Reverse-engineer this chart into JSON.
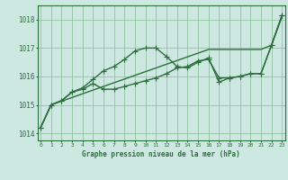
{
  "xlabel": "Graphe pression niveau de la mer (hPa)",
  "ylim": [
    1013.75,
    1018.5
  ],
  "xlim": [
    -0.3,
    23.3
  ],
  "yticks": [
    1014,
    1015,
    1016,
    1017,
    1018
  ],
  "xticks": [
    0,
    1,
    2,
    3,
    4,
    5,
    6,
    7,
    8,
    9,
    10,
    11,
    12,
    13,
    14,
    15,
    16,
    17,
    18,
    19,
    20,
    21,
    22,
    23
  ],
  "bg_color": "#cce8e0",
  "grid_color": "#88bb99",
  "line_color": "#2d6e3e",
  "series_straight": [
    1014.2,
    1015.0,
    1015.13,
    1015.26,
    1015.39,
    1015.52,
    1015.65,
    1015.78,
    1015.91,
    1016.04,
    1016.17,
    1016.3,
    1016.43,
    1016.56,
    1016.69,
    1016.82,
    1016.95,
    1016.95,
    1016.95,
    1016.95,
    1016.95,
    1016.95,
    1017.1,
    1018.1
  ],
  "series_high": [
    1014.2,
    1015.0,
    1015.15,
    1015.45,
    1015.6,
    1015.9,
    1016.2,
    1016.35,
    1016.6,
    1016.9,
    1017.0,
    1017.0,
    1016.7,
    1016.35,
    1016.3,
    1016.5,
    1016.65,
    1015.8,
    1015.95,
    1016.0,
    1016.1,
    1016.1,
    1017.1,
    1018.15
  ],
  "series_mid": [
    1014.2,
    1015.0,
    1015.15,
    1015.45,
    1015.55,
    1015.75,
    1015.55,
    1015.55,
    1015.65,
    1015.75,
    1015.85,
    1015.95,
    1016.1,
    1016.3,
    1016.35,
    1016.55,
    1016.6,
    1015.95,
    1015.95,
    1016.0,
    1016.1,
    1016.1,
    1017.1,
    1018.15
  ],
  "marker": "+",
  "markersize": 4,
  "linewidth": 1.0
}
